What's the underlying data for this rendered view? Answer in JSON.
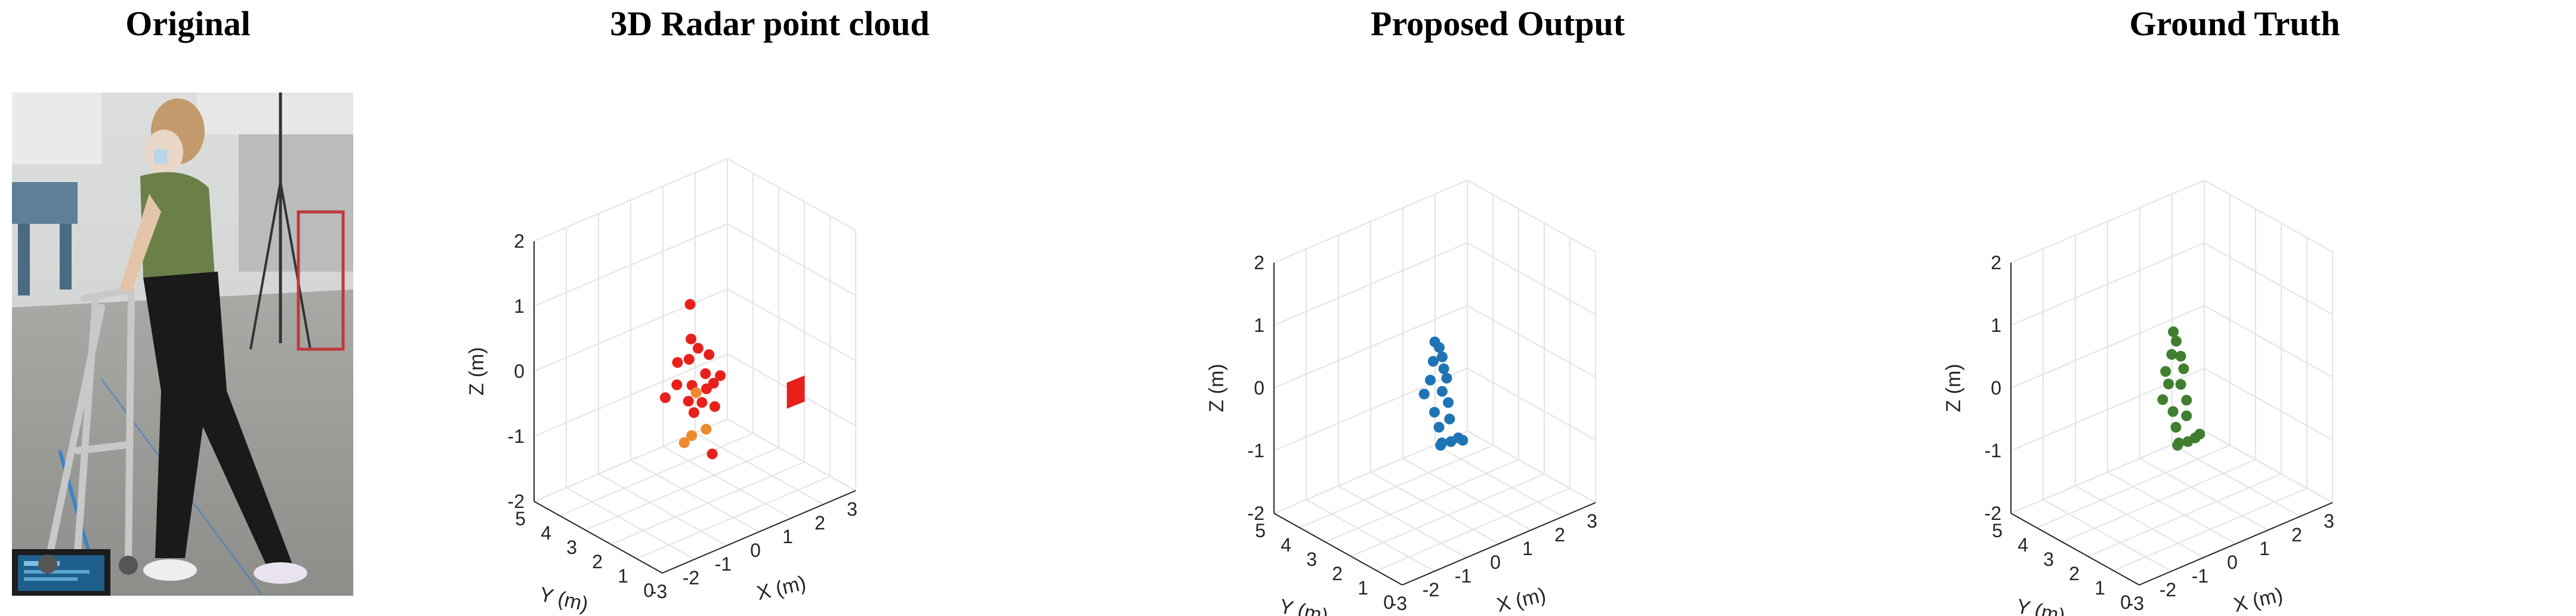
{
  "panels": {
    "original_title": "Original"
  },
  "colors": {
    "radar_near": "#e8201c",
    "radar_far": "#f08a2e",
    "proposed": "#1f74b5",
    "ground_truth": "#3f7f2f",
    "grid": "#e3e3e3",
    "axis": "#262626"
  },
  "photo": {
    "icon": "person-with-walker-photo"
  },
  "chart_data": [
    {
      "type": "scatter",
      "title": "3D Radar point cloud",
      "xlabel": "X (m)",
      "ylabel": "Y (m)",
      "zlabel": "Z (m)",
      "xlim": [
        -3,
        3
      ],
      "ylim": [
        0,
        5
      ],
      "zlim": [
        -2,
        2
      ],
      "x_ticks": [
        "-3",
        "-2",
        "-1",
        "0",
        "1",
        "2",
        "3"
      ],
      "y_ticks": [
        "0",
        "1",
        "2",
        "3",
        "4",
        "5"
      ],
      "z_ticks": [
        "-2",
        "-1",
        "0",
        "1",
        "2"
      ],
      "grid": true,
      "series": [
        {
          "color": "#e8201c",
          "points": [
            [
              0.05,
              2.75,
              0.88
            ],
            [
              0.0,
              2.65,
              0.38
            ],
            [
              0.1,
              2.5,
              0.25
            ],
            [
              -0.3,
              2.8,
              0.05
            ],
            [
              -0.1,
              2.6,
              0.1
            ],
            [
              0.4,
              2.45,
              0.1
            ],
            [
              0.25,
              2.4,
              -0.15
            ],
            [
              -0.05,
              2.55,
              -0.3
            ],
            [
              0.2,
              2.3,
              -0.35
            ],
            [
              0.55,
              2.2,
              -0.2
            ],
            [
              0.5,
              2.4,
              -0.35
            ],
            [
              -0.4,
              2.7,
              -0.25
            ],
            [
              0.1,
              2.35,
              -0.55
            ],
            [
              -0.2,
              2.5,
              -0.5
            ],
            [
              0.05,
              2.6,
              -0.75
            ],
            [
              0.3,
              2.2,
              -1.35
            ],
            [
              -0.6,
              2.9,
              -0.45
            ],
            [
              0.3,
              2.1,
              -0.6
            ]
          ]
        },
        {
          "color": "#f08a2e",
          "points": [
            [
              -0.1,
              2.5,
              -1.05
            ],
            [
              0.15,
              2.25,
              -0.95
            ],
            [
              -0.25,
              2.6,
              -1.15
            ],
            [
              0.0,
              2.45,
              -0.4
            ]
          ]
        }
      ],
      "marker_patch": {
        "color": "#e8201c",
        "position": [
          1.5,
          0.8,
          -0.6
        ]
      }
    },
    {
      "type": "scatter",
      "title": "Proposed Output",
      "xlabel": "X (m)",
      "ylabel": "Y (m)",
      "zlabel": "Z (m)",
      "xlim": [
        -3,
        3
      ],
      "ylim": [
        0,
        5
      ],
      "zlim": [
        -2,
        2
      ],
      "x_ticks": [
        "-3",
        "-2",
        "-1",
        "0",
        "1",
        "2",
        "3"
      ],
      "y_ticks": [
        "0",
        "1",
        "2",
        "3",
        "4",
        "5"
      ],
      "z_ticks": [
        "-2",
        "-1",
        "0",
        "1",
        "2"
      ],
      "grid": true,
      "series": [
        {
          "color": "#1f74b5",
          "points": [
            [
              0.0,
              2.5,
              0.65
            ],
            [
              0.1,
              2.45,
              0.55
            ],
            [
              0.15,
              2.4,
              0.4
            ],
            [
              -0.05,
              2.5,
              0.35
            ],
            [
              0.2,
              2.4,
              0.2
            ],
            [
              -0.1,
              2.55,
              0.05
            ],
            [
              0.25,
              2.35,
              0.05
            ],
            [
              -0.25,
              2.6,
              -0.15
            ],
            [
              0.15,
              2.4,
              -0.15
            ],
            [
              0.3,
              2.35,
              -0.35
            ],
            [
              -0.05,
              2.45,
              -0.45
            ],
            [
              0.3,
              2.3,
              -0.6
            ],
            [
              0.05,
              2.4,
              -0.7
            ],
            [
              0.1,
              2.35,
              -0.95
            ],
            [
              0.3,
              2.25,
              -0.95
            ],
            [
              0.45,
              2.15,
              -0.9
            ],
            [
              0.55,
              2.1,
              -0.95
            ],
            [
              0.1,
              2.4,
              -1.0
            ]
          ]
        }
      ]
    },
    {
      "type": "scatter",
      "title": "Ground Truth",
      "xlabel": "X (m)",
      "ylabel": "Y (m)",
      "zlabel": "Z (m)",
      "xlim": [
        -3,
        3
      ],
      "ylim": [
        0,
        5
      ],
      "zlim": [
        -2,
        2
      ],
      "x_ticks": [
        "-3",
        "-2",
        "-1",
        "0",
        "1",
        "2",
        "3"
      ],
      "y_ticks": [
        "0",
        "1",
        "2",
        "3",
        "4",
        "5"
      ],
      "z_ticks": [
        "-2",
        "-1",
        "0",
        "1",
        "2"
      ],
      "grid": true,
      "series": [
        {
          "color": "#3f7f2f",
          "points": [
            [
              0.05,
              2.5,
              0.8
            ],
            [
              0.1,
              2.45,
              0.65
            ],
            [
              0.0,
              2.5,
              0.45
            ],
            [
              0.2,
              2.4,
              0.4
            ],
            [
              -0.15,
              2.55,
              0.2
            ],
            [
              0.25,
              2.35,
              0.2
            ],
            [
              -0.1,
              2.5,
              0.0
            ],
            [
              0.2,
              2.4,
              -0.05
            ],
            [
              -0.2,
              2.6,
              -0.25
            ],
            [
              0.3,
              2.3,
              -0.3
            ],
            [
              0.0,
              2.45,
              -0.45
            ],
            [
              0.3,
              2.3,
              -0.55
            ],
            [
              0.05,
              2.4,
              -0.7
            ],
            [
              0.1,
              2.35,
              -0.95
            ],
            [
              0.3,
              2.25,
              -0.95
            ],
            [
              0.45,
              2.15,
              -0.9
            ],
            [
              0.55,
              2.1,
              -0.85
            ],
            [
              0.1,
              2.4,
              -1.0
            ]
          ]
        }
      ]
    }
  ]
}
